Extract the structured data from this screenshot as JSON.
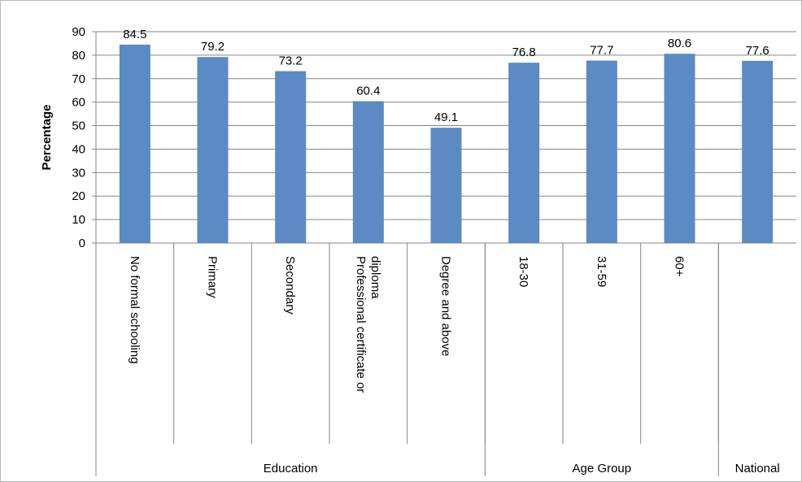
{
  "chart_data": {
    "type": "bar",
    "ylabel": "Percentage",
    "ylim": [
      0,
      90
    ],
    "yticks": [
      "0",
      "10",
      "20",
      "30",
      "40",
      "50",
      "60",
      "70",
      "80",
      "90"
    ],
    "grid": true,
    "legend": "none",
    "categories": [
      "No formal schooling",
      "Primary",
      "Secondary",
      "Professional certificate or diploma",
      "Degree and above",
      "18-30",
      "31-59",
      "60+",
      ""
    ],
    "values": [
      84.5,
      79.2,
      73.2,
      60.4,
      49.1,
      76.8,
      77.7,
      80.6,
      77.6
    ],
    "data_labels": [
      "84.5",
      "79.2",
      "73.2",
      "60.4",
      "49.1",
      "76.8",
      "77.7",
      "80.6",
      "77.6"
    ],
    "groups": [
      {
        "label": "Education",
        "count": 5
      },
      {
        "label": "Age Group",
        "count": 3
      },
      {
        "label": "National",
        "count": 1
      }
    ],
    "bar_color": "#5b8ac4",
    "grid_color": "#868686"
  }
}
